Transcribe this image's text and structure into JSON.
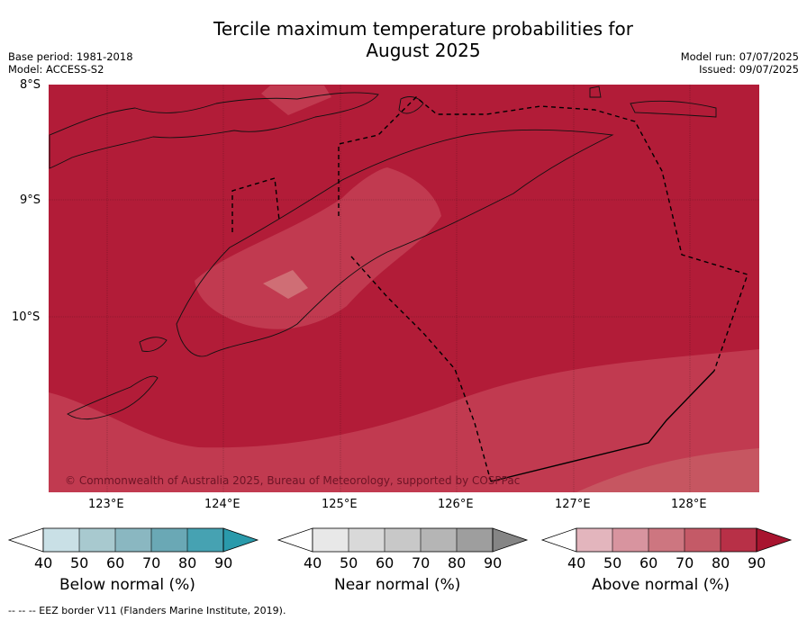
{
  "title_line1": "Tercile maximum temperature probabilities for",
  "title_line2": "August 2025",
  "base_period": "Base period: 1981-2018",
  "model": "Model: ACCESS-S2",
  "model_run": "Model run: 07/07/2025",
  "issued": "Issued: 09/07/2025",
  "copyright": "© Commonwealth of Australia 2025, Bureau of Meteorology, supported by COSPPac",
  "lat_ticks": [
    "8°S",
    "9°S",
    "10°S"
  ],
  "lon_ticks": [
    "123°E",
    "124°E",
    "125°E",
    "126°E",
    "127°E",
    "128°E"
  ],
  "colorbars": [
    {
      "label": "Below normal (%)",
      "ticks": [
        "40",
        "50",
        "60",
        "70",
        "80",
        "90"
      ],
      "colors": [
        "#ffffff",
        "#c9e0e6",
        "#a8c9cf",
        "#8ab7c1",
        "#6aa8b5",
        "#46a2b2",
        "#2a9aab"
      ]
    },
    {
      "label": "Near normal (%)",
      "ticks": [
        "40",
        "50",
        "60",
        "70",
        "80",
        "90"
      ],
      "colors": [
        "#ffffff",
        "#e8e8e8",
        "#d9d9d9",
        "#c8c8c8",
        "#b5b5b5",
        "#9e9e9e",
        "#858585"
      ]
    },
    {
      "label": "Above normal (%)",
      "ticks": [
        "40",
        "50",
        "60",
        "70",
        "80",
        "90"
      ],
      "colors": [
        "#ffffff",
        "#e3b5bd",
        "#d8949f",
        "#cd7680",
        "#c45a67",
        "#b83047",
        "#a8142f"
      ]
    }
  ],
  "map_colors": {
    "above_80": "#b21c38",
    "above_70": "#c13a50",
    "above_60": "#cf6e75"
  },
  "footer": "--  --  -- EEZ border V11 (Flanders Marine Institute, 2019)."
}
